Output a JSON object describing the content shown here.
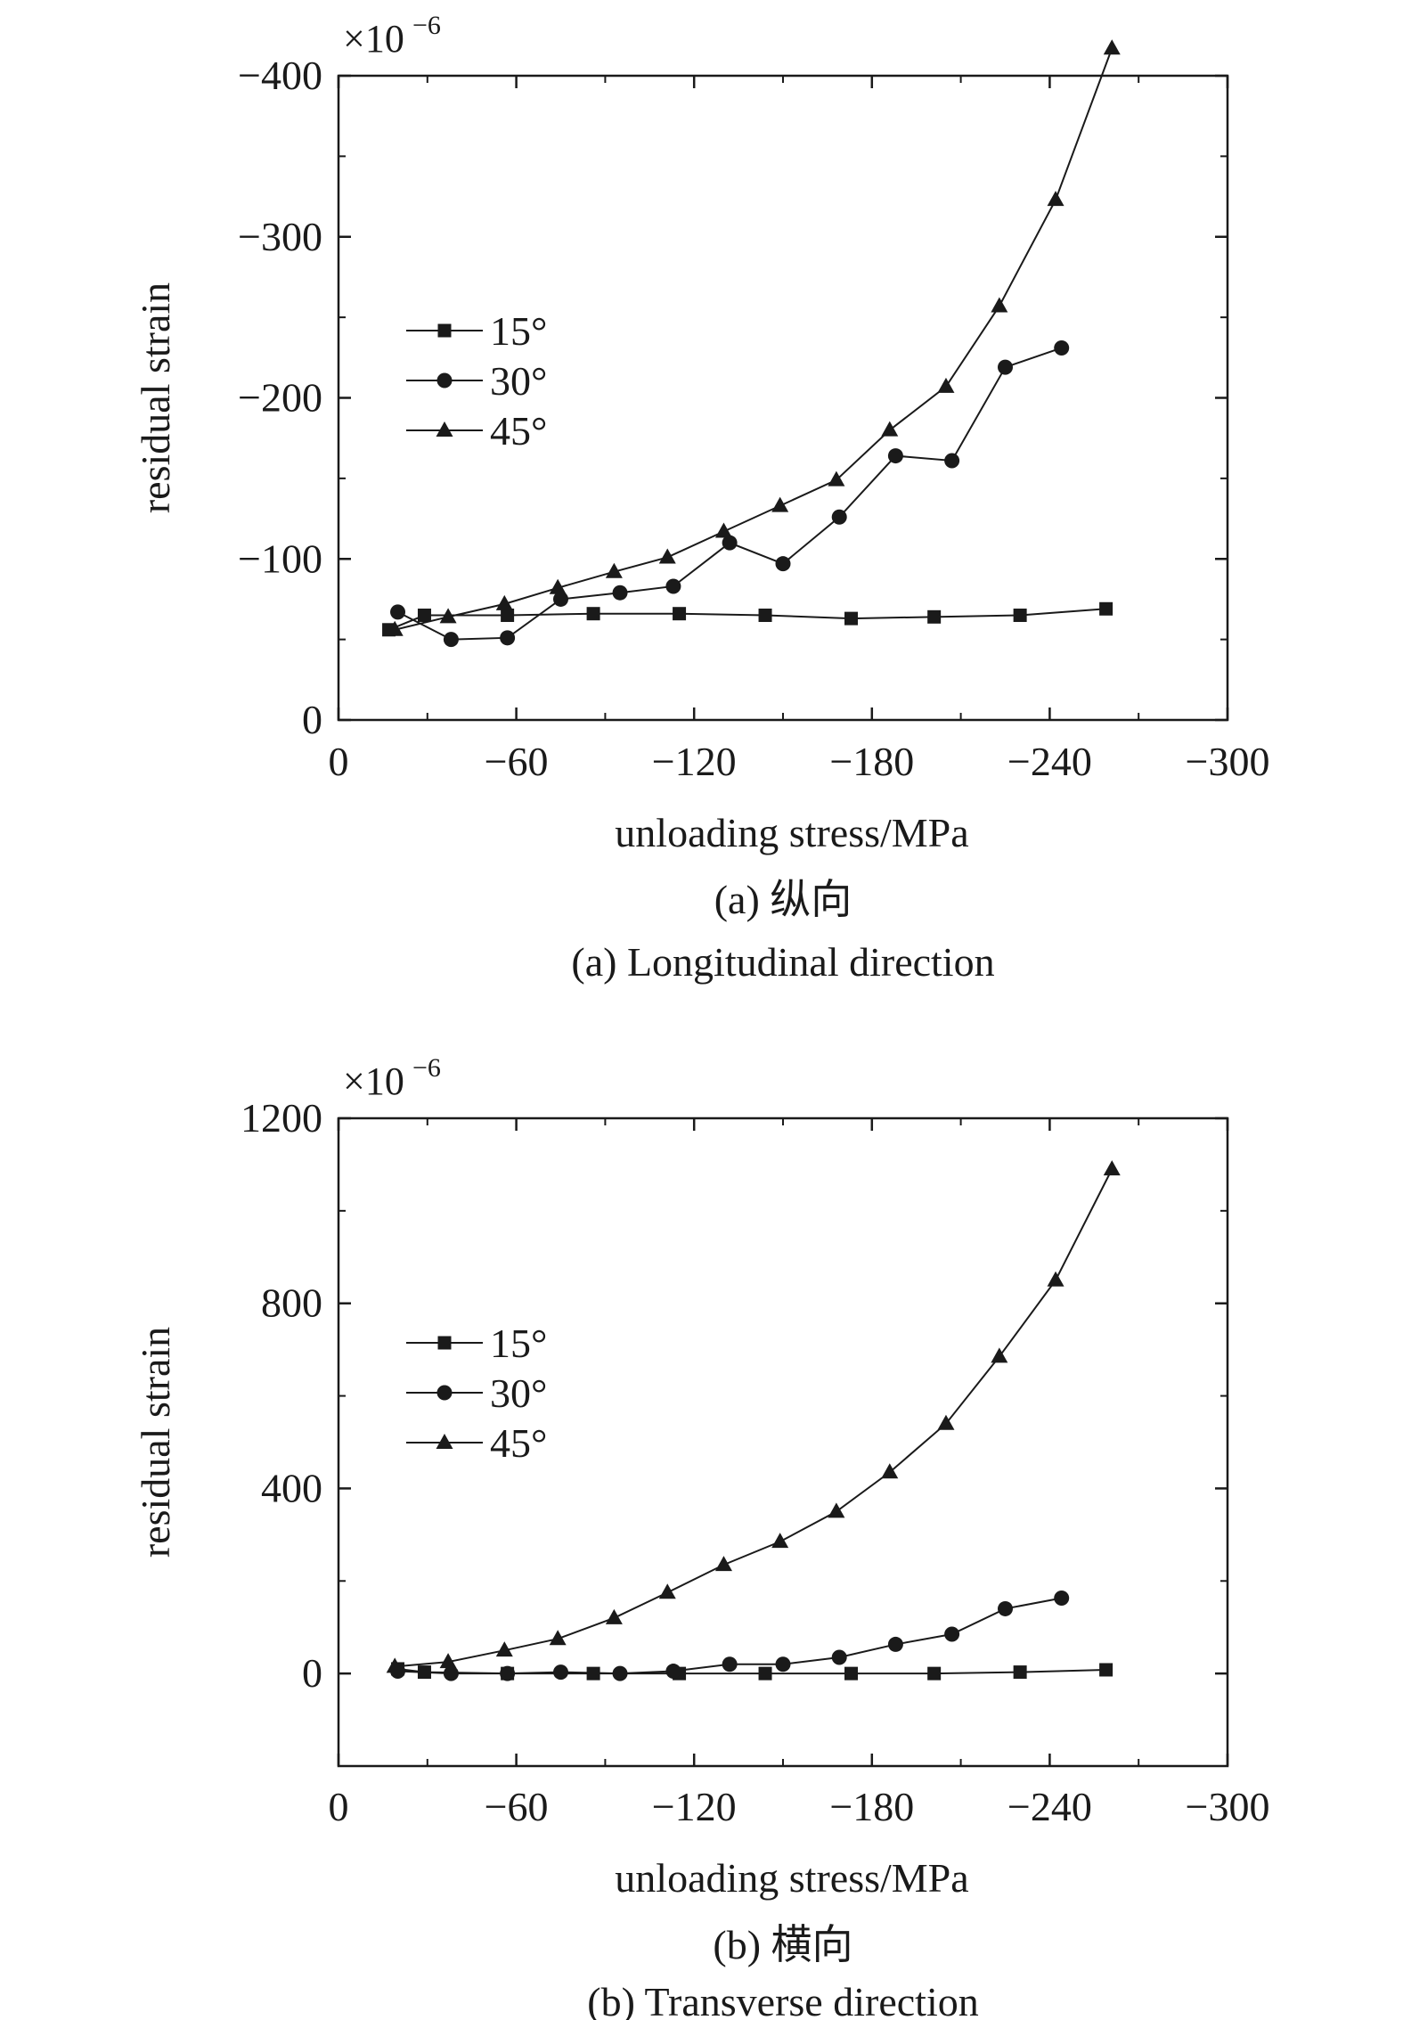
{
  "charts": [
    {
      "type": "line",
      "ylabel": "residual strain",
      "xlabel": "unloading stress/MPa",
      "multiplier": "×10",
      "exponent": "−6",
      "caption_cn": "(a) 纵向",
      "caption_en": "(a) Longitudinal direction",
      "xlim": [
        0,
        -300
      ],
      "ylim": [
        0,
        -400
      ],
      "x_ticks": [
        0,
        -60,
        -120,
        -180,
        -240,
        -300
      ],
      "x_tick_labels": [
        "0",
        "−60",
        "−120",
        "−180",
        "−240",
        "−300"
      ],
      "y_ticks": [
        0,
        -100,
        -200,
        -300,
        -400
      ],
      "y_tick_labels": [
        "0",
        "−100",
        "−200",
        "−300",
        "−400"
      ],
      "y_minor_ticks": [
        -50,
        -150,
        -250,
        -350
      ],
      "legend_position": "left",
      "series": [
        {
          "name": "15°",
          "marker": "square",
          "x": [
            -17,
            -29,
            -57,
            -86,
            -115,
            -144,
            -173,
            -201,
            -230,
            -259
          ],
          "y": [
            -56,
            -65,
            -65,
            -66,
            -66,
            -65,
            -63,
            -64,
            -65,
            -69
          ]
        },
        {
          "name": "30°",
          "marker": "circle",
          "x": [
            -20,
            -38,
            -57,
            -75,
            -95,
            -113,
            -132,
            -150,
            -169,
            -188,
            -207,
            -225,
            -244
          ],
          "y": [
            -67,
            -50,
            -51,
            -75,
            -79,
            -83,
            -110,
            -97,
            -126,
            -164,
            -161,
            -219,
            -231
          ]
        },
        {
          "name": "45°",
          "marker": "triangle",
          "x": [
            -19,
            -37,
            -56,
            -74,
            -93,
            -111,
            -130,
            -149,
            -168,
            -186,
            -205,
            -223,
            -242,
            -261
          ],
          "y": [
            -56,
            -64,
            -72,
            -82,
            -92,
            -101,
            -117,
            -133,
            -149,
            -180,
            -207,
            -257,
            -323,
            -417
          ]
        }
      ]
    },
    {
      "type": "line",
      "ylabel": "residual strain",
      "xlabel": "unloading stress/MPa",
      "multiplier": "×10",
      "exponent": "−6",
      "caption_cn": "(b) 横向",
      "caption_en": "(b) Transverse direction",
      "xlim": [
        0,
        -300
      ],
      "ylim": [
        -200,
        1200
      ],
      "x_ticks": [
        0,
        -60,
        -120,
        -180,
        -240,
        -300
      ],
      "x_tick_labels": [
        "0",
        "−60",
        "−120",
        "−180",
        "−240",
        "−300"
      ],
      "y_ticks": [
        0,
        400,
        800,
        1200
      ],
      "y_tick_labels": [
        "0",
        "400",
        "800",
        "1200"
      ],
      "y_minor_ticks": [
        200,
        600,
        1000
      ],
      "legend_position": "left",
      "series": [
        {
          "name": "15°",
          "marker": "square",
          "x": [
            -20,
            -29,
            -57,
            -86,
            -115,
            -144,
            -173,
            -201,
            -230,
            -259
          ],
          "y": [
            10,
            3,
            0,
            0,
            0,
            0,
            0,
            0,
            3,
            8
          ]
        },
        {
          "name": "30°",
          "marker": "circle",
          "x": [
            -20,
            -38,
            -57,
            -75,
            -95,
            -113,
            -132,
            -150,
            -169,
            -188,
            -207,
            -225,
            -244
          ],
          "y": [
            5,
            0,
            0,
            3,
            0,
            5,
            20,
            20,
            35,
            63,
            85,
            140,
            163
          ]
        },
        {
          "name": "45°",
          "marker": "triangle",
          "x": [
            -19,
            -37,
            -56,
            -74,
            -93,
            -111,
            -130,
            -149,
            -168,
            -186,
            -205,
            -223,
            -242,
            -261
          ],
          "y": [
            15,
            25,
            50,
            75,
            120,
            175,
            235,
            285,
            350,
            435,
            540,
            685,
            850,
            1090
          ]
        }
      ]
    }
  ]
}
